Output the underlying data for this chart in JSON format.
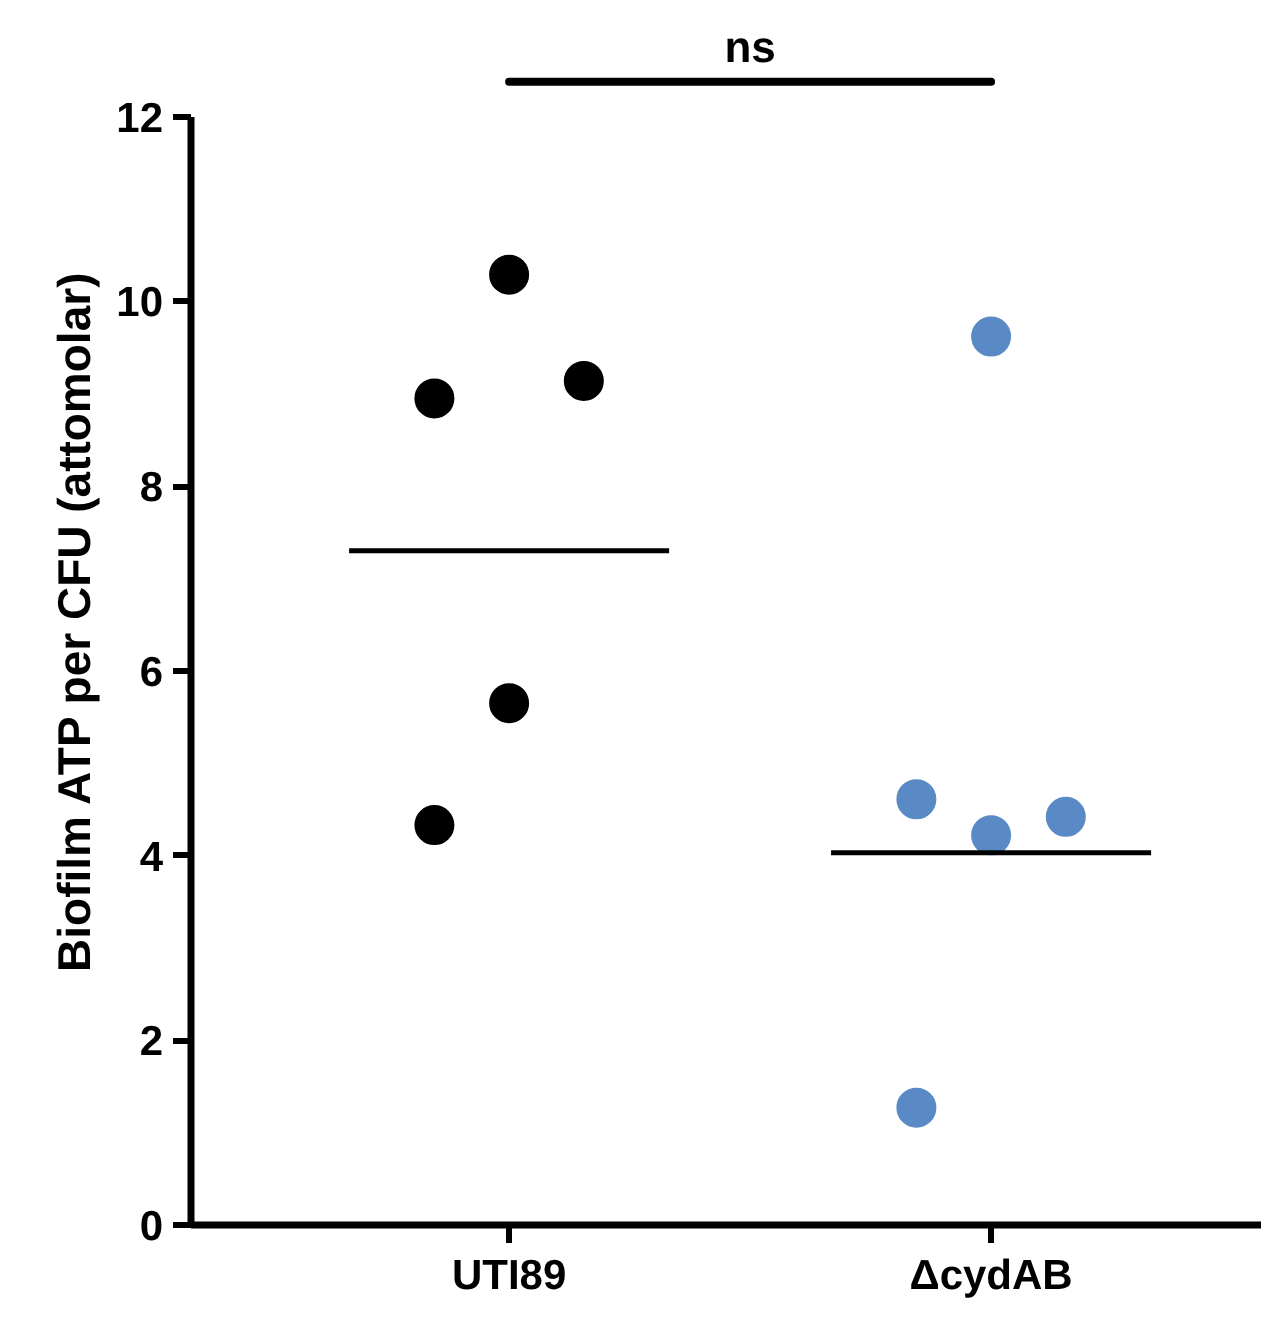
{
  "chart_data": {
    "type": "scatter",
    "ylabel": "Biofilm ATP per CFU (attomolar)",
    "categories": [
      "UTI89",
      "ΔcydAB"
    ],
    "ylim": [
      0,
      12
    ],
    "yticks": [
      0,
      2,
      4,
      6,
      8,
      10,
      12
    ],
    "grid": false,
    "marker": "circle",
    "series": [
      {
        "colors": [
          "#000000",
          "#5a8ac6"
        ],
        "values": [
          10.29,
          9.62
        ]
      },
      {
        "colors": [
          "#000000",
          "#5a8ac6"
        ],
        "values": [
          8.95,
          4.61
        ]
      },
      {
        "colors": [
          "#000000",
          "#5a8ac6"
        ],
        "values": [
          9.14,
          4.42
        ]
      },
      {
        "colors": [
          "#000000",
          "#5a8ac6"
        ],
        "values": [
          5.65,
          4.22
        ]
      },
      {
        "colors": [
          "#000000",
          "#5a8ac6"
        ],
        "values": [
          4.33,
          1.27
        ]
      }
    ],
    "ref_lines": [
      {
        "axis": "y",
        "value": 7.3,
        "color": "#000000"
      },
      {
        "axis": "y",
        "value": 4.03,
        "color": "#000000"
      }
    ],
    "annotations": [
      "ns"
    ]
  }
}
